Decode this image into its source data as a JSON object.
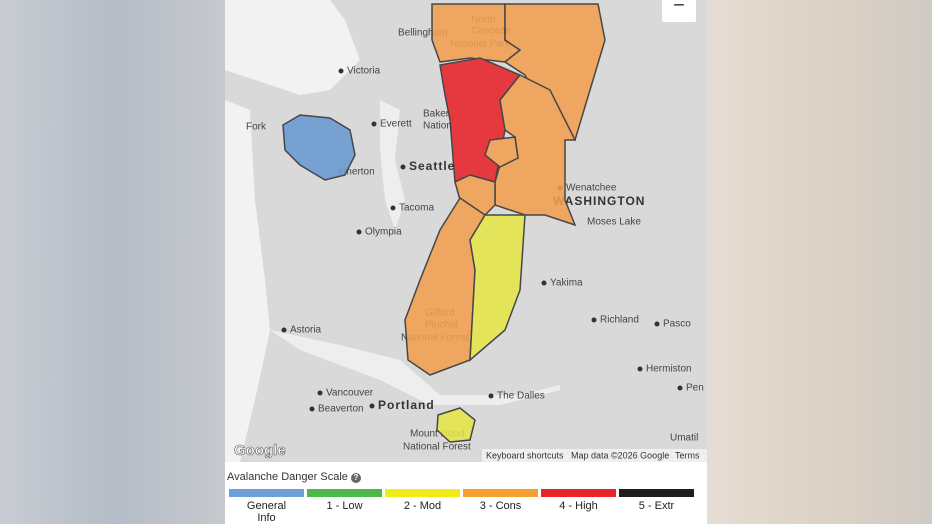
{
  "map": {
    "zoom_out": "−",
    "labels": [
      "Bellingham",
      "North",
      "Cascade",
      "National Park",
      "Victoria",
      "Fork",
      "Everett",
      "Baker",
      "Nation",
      "Seattle",
      "emerton",
      "Tacoma",
      "Olympia",
      "Wenatchee",
      "WASHINGTON",
      "Moses Lake",
      "Yakima",
      "Astoria",
      "Gifford",
      "Pinchot",
      "National Forest",
      "Richland",
      "Pasco",
      "Hermiston",
      "Pen",
      "Vancouver",
      "Beaverton",
      "Portland",
      "The Dalles",
      "Mount Hood",
      "National Forest",
      "Umatil"
    ],
    "attribution": {
      "logo": "Google",
      "shortcuts": "Keyboard shortcuts",
      "map_data": "Map data ©2026 Google",
      "terms": "Terms"
    }
  },
  "legend": {
    "title": "Avalanche Danger Scale",
    "help": "?",
    "items": [
      {
        "label": "General Info",
        "color": "#6f9fd8"
      },
      {
        "label": "1 - Low",
        "color": "#4cb848"
      },
      {
        "label": "2 - Mod",
        "color": "#f2ec16"
      },
      {
        "label": "3 - Cons",
        "color": "#f5a030"
      },
      {
        "label": "4 - High",
        "color": "#e8232a"
      },
      {
        "label": "5 - Extr",
        "color": "#1e1e1e"
      }
    ]
  }
}
